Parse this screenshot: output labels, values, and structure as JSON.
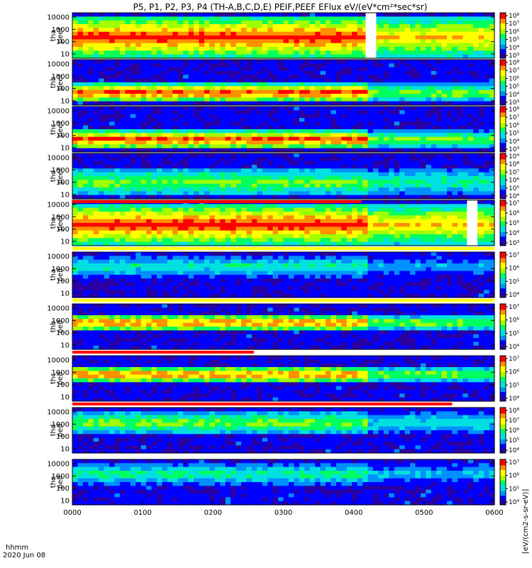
{
  "chart_data": {
    "type": "heatmap",
    "title": "P5, P1, P2, P3, P4 (TH-A,B,C,D,E) PEIF,PEEF EFlux eV/(eV*cm²*sec*sr)",
    "x_axis": {
      "label": "hhmm",
      "date": "2020 Jun 08",
      "ticks": [
        "0000",
        "0100",
        "0200",
        "0300",
        "0400",
        "0500",
        "0600"
      ]
    },
    "y_scale": "log",
    "y_ticks": [
      "10",
      "100",
      "1000",
      "10000"
    ],
    "colorbar_unit": "[eV/(cm2-s-sr-eV)]",
    "colormap": [
      "#2a00a0",
      "#0000ff",
      "#0090ff",
      "#00e0e0",
      "#00ff60",
      "#a0ff00",
      "#ffff00",
      "#ff9000",
      "#ff0000"
    ],
    "panels": [
      {
        "probe": "tha",
        "species": "peef",
        "label": "tha\npeef",
        "cb_ticks": [
          "10³",
          "10⁴",
          "10⁵",
          "10⁶",
          "10⁷",
          "10⁸"
        ],
        "level_low": 0.55,
        "level_high": 0.95,
        "band": [
          0.05,
          0.95
        ],
        "gap": [
          0.695,
          0.72
        ]
      },
      {
        "probe": "thb",
        "species": "peef",
        "label": "thb\npeef",
        "cb_ticks": [
          "10³",
          "10⁴",
          "10⁵",
          "10⁶",
          "10⁷",
          "10⁸"
        ],
        "level_low": 0.1,
        "level_high": 0.95,
        "band": [
          0.12,
          0.5
        ],
        "gap": null
      },
      {
        "probe": "thc",
        "species": "peef",
        "label": "thc\npeef",
        "cb_ticks": [
          "10³",
          "10⁴",
          "10⁵",
          "10⁶",
          "10⁷",
          "10⁸"
        ],
        "level_low": 0.1,
        "level_high": 0.95,
        "band": [
          0.12,
          0.5
        ],
        "gap": null
      },
      {
        "probe": "thd",
        "species": "peef",
        "label": "thd\npeef",
        "cb_ticks": [
          "10⁴",
          "10⁵",
          "10⁶",
          "10⁷",
          "10⁸",
          "10⁹"
        ],
        "level_low": 0.3,
        "level_high": 0.6,
        "band": [
          0.1,
          0.7
        ],
        "gap": null
      },
      {
        "probe": "the",
        "species": "peef",
        "label": "the\npeef",
        "cb_ticks": [
          "10³",
          "10⁴",
          "10⁵",
          "10⁶",
          "10⁷"
        ],
        "level_low": 0.55,
        "level_high": 0.95,
        "band": [
          0.05,
          0.95
        ],
        "gap": [
          0.935,
          0.96
        ]
      },
      {
        "probe": "tha",
        "species": "peif",
        "label": "tha\npeif",
        "cb_ticks": [
          "10⁴",
          "10⁵",
          "10⁶",
          "10⁷"
        ],
        "level_low": 0.1,
        "level_high": 0.45,
        "band": [
          0.5,
          0.95
        ],
        "gap": null
      },
      {
        "probe": "thb",
        "species": "peif",
        "label": "thb\npeif",
        "cb_ticks": [
          "10⁴",
          "10⁵",
          "10⁶",
          "10⁷"
        ],
        "level_low": 0.15,
        "level_high": 0.9,
        "band": [
          0.45,
          0.8
        ],
        "gap": null
      },
      {
        "probe": "thc",
        "species": "peif",
        "label": "thc\npeif",
        "cb_ticks": [
          "10⁴",
          "10⁵",
          "10⁶",
          "10⁷"
        ],
        "level_low": 0.15,
        "level_high": 0.9,
        "band": [
          0.45,
          0.8
        ],
        "gap": null
      },
      {
        "probe": "thd",
        "species": "peif",
        "label": "thd\npeif",
        "cb_ticks": [
          "10⁴",
          "10⁵",
          "10⁶",
          "10⁷",
          "10⁸"
        ],
        "level_low": 0.1,
        "level_high": 0.6,
        "band": [
          0.45,
          0.95
        ],
        "gap": null
      },
      {
        "probe": "the",
        "species": "peif",
        "label": "the\npeif",
        "cb_ticks": [
          "10⁴",
          "10⁵",
          "10⁶",
          "10⁷"
        ],
        "level_low": 0.1,
        "level_high": 0.5,
        "band": [
          0.5,
          0.95
        ],
        "gap": null
      }
    ],
    "status_bars": [
      {
        "after_panel": 4,
        "color": "#ff0000",
        "from": 0.0,
        "to": 0.685
      },
      {
        "after_panel": 5,
        "color": "#ffff00",
        "from": 0.0,
        "to": 1.0
      },
      {
        "after_panel": 6,
        "color": "#ffff00",
        "from": 0.0,
        "to": 1.0
      },
      {
        "after_panel": 7,
        "color": "#ff0000",
        "from": 0.0,
        "to": 0.43
      },
      {
        "after_panel": 8,
        "color": "#ff0000",
        "from": 0.0,
        "to": 0.9
      }
    ]
  }
}
